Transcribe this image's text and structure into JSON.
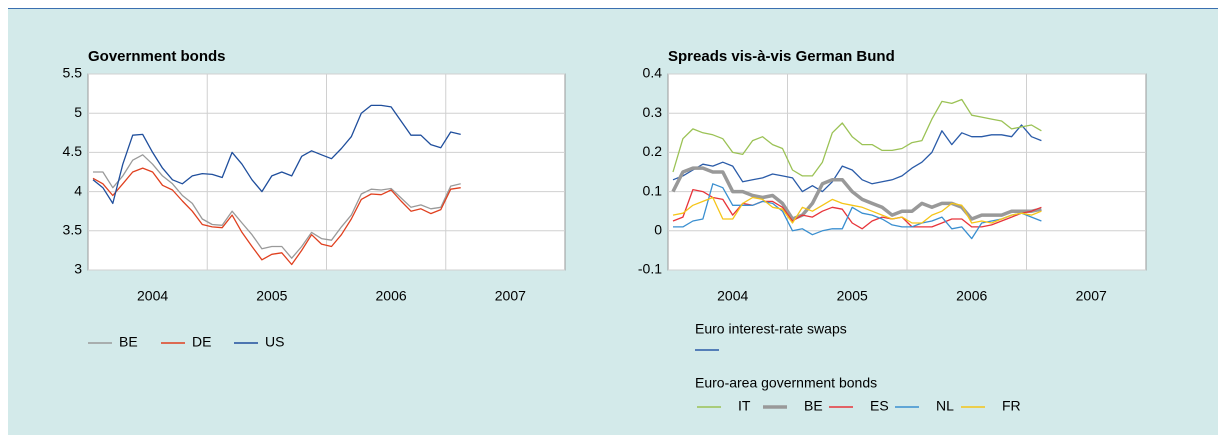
{
  "chart_data": [
    {
      "type": "line",
      "title": "Government bonds",
      "categories": [
        null,
        null,
        null,
        null,
        null,
        null,
        "2004",
        null,
        null,
        null,
        null,
        null,
        null,
        null,
        null,
        null,
        null,
        null,
        "2005",
        null,
        null,
        null,
        null,
        null,
        null,
        null,
        null,
        null,
        null,
        null,
        "2006",
        null,
        null,
        null,
        null,
        null,
        null,
        null,
        null,
        null,
        null,
        null,
        "2007",
        null,
        null,
        null,
        null,
        null
      ],
      "ylim": [
        3,
        5.5
      ],
      "yticks": [
        3,
        3.5,
        4,
        4.5,
        5,
        5.5
      ],
      "grid": true,
      "series": [
        {
          "name": "BE",
          "color": "#9a9a9a",
          "values": [
            4.25,
            4.25,
            4.05,
            4.2,
            4.4,
            4.47,
            4.35,
            4.2,
            4.1,
            3.95,
            3.85,
            3.65,
            3.58,
            3.57,
            3.75,
            3.6,
            3.45,
            3.27,
            3.3,
            3.3,
            3.15,
            3.3,
            3.48,
            3.4,
            3.38,
            3.55,
            3.7,
            3.97,
            4.03,
            4.02,
            4.04,
            3.92,
            3.8,
            3.83,
            3.78,
            3.8,
            4.07,
            4.1,
            null,
            null,
            null,
            null,
            null,
            null,
            null,
            null,
            null,
            null
          ]
        },
        {
          "name": "DE",
          "color": "#e0401f",
          "values": [
            4.17,
            4.1,
            3.95,
            4.1,
            4.25,
            4.3,
            4.25,
            4.08,
            4.02,
            3.88,
            3.75,
            3.58,
            3.55,
            3.54,
            3.7,
            3.48,
            3.3,
            3.13,
            3.2,
            3.22,
            3.07,
            3.25,
            3.45,
            3.33,
            3.3,
            3.45,
            3.65,
            3.9,
            3.97,
            3.96,
            4.02,
            3.88,
            3.75,
            3.78,
            3.72,
            3.77,
            4.03,
            4.05,
            null,
            null,
            null,
            null,
            null,
            null,
            null,
            null,
            null,
            null
          ]
        },
        {
          "name": "US",
          "color": "#1f4e9c",
          "values": [
            4.15,
            4.05,
            3.85,
            4.35,
            4.72,
            4.73,
            4.5,
            4.3,
            4.15,
            4.1,
            4.2,
            4.23,
            4.22,
            4.18,
            4.5,
            4.35,
            4.15,
            4.0,
            4.2,
            4.25,
            4.2,
            4.45,
            4.52,
            4.47,
            4.42,
            4.55,
            4.7,
            5.0,
            5.1,
            5.1,
            5.08,
            4.9,
            4.72,
            4.72,
            4.6,
            4.56,
            4.76,
            4.73,
            null,
            null,
            null,
            null,
            null,
            null,
            null,
            null,
            null,
            null
          ]
        }
      ]
    },
    {
      "type": "line",
      "title": "Spreads vis-à-vis German Bund",
      "categories": [
        null,
        null,
        null,
        null,
        null,
        null,
        "2004",
        null,
        null,
        null,
        null,
        null,
        null,
        null,
        null,
        null,
        null,
        null,
        "2005",
        null,
        null,
        null,
        null,
        null,
        null,
        null,
        null,
        null,
        null,
        null,
        "2006",
        null,
        null,
        null,
        null,
        null,
        null,
        null,
        null,
        null,
        null,
        null,
        "2007",
        null,
        null,
        null,
        null,
        null
      ],
      "ylim": [
        -0.1,
        0.4
      ],
      "yticks": [
        -0.1,
        0,
        0.1,
        0.2,
        0.3,
        0.4
      ],
      "grid": true,
      "legend_title": "Euro-area government bonds",
      "series": [
        {
          "name": "Euro interest-rate swaps",
          "color": "#2a5ba8",
          "values": [
            0.13,
            0.14,
            0.155,
            0.17,
            0.165,
            0.175,
            0.165,
            0.125,
            0.13,
            0.135,
            0.145,
            0.14,
            0.135,
            0.1,
            0.115,
            0.1,
            0.125,
            0.165,
            0.155,
            0.13,
            0.12,
            0.125,
            0.13,
            0.14,
            0.16,
            0.175,
            0.2,
            0.255,
            0.22,
            0.25,
            0.24,
            0.24,
            0.245,
            0.245,
            0.24,
            0.27,
            0.24,
            0.23,
            null,
            null,
            null,
            null,
            null,
            null,
            null,
            null,
            null,
            null
          ]
        },
        {
          "name": "IT",
          "color": "#9bc255",
          "values": [
            0.15,
            0.235,
            0.26,
            0.25,
            0.245,
            0.235,
            0.2,
            0.195,
            0.23,
            0.24,
            0.22,
            0.21,
            0.155,
            0.14,
            0.14,
            0.175,
            0.25,
            0.275,
            0.24,
            0.22,
            0.22,
            0.205,
            0.205,
            0.21,
            0.225,
            0.23,
            0.285,
            0.33,
            0.325,
            0.335,
            0.295,
            0.29,
            0.285,
            0.28,
            0.26,
            0.265,
            0.27,
            0.255,
            null,
            null,
            null,
            null,
            null,
            null,
            null,
            null,
            null,
            null
          ]
        },
        {
          "name": "BE",
          "color": "#999999",
          "width": 3.5,
          "values": [
            0.1,
            0.15,
            0.16,
            0.16,
            0.15,
            0.15,
            0.1,
            0.1,
            0.09,
            0.085,
            0.09,
            0.07,
            0.03,
            0.04,
            0.07,
            0.12,
            0.13,
            0.13,
            0.1,
            0.08,
            0.07,
            0.06,
            0.04,
            0.05,
            0.05,
            0.07,
            0.06,
            0.07,
            0.07,
            0.06,
            0.03,
            0.04,
            0.04,
            0.04,
            0.05,
            0.05,
            0.05,
            0.055,
            null,
            null,
            null,
            null,
            null,
            null,
            null,
            null,
            null,
            null
          ]
        },
        {
          "name": "ES",
          "color": "#e8343a",
          "values": [
            0.025,
            0.035,
            0.105,
            0.1,
            0.085,
            0.08,
            0.04,
            0.07,
            0.065,
            0.075,
            0.075,
            0.06,
            0.025,
            0.04,
            0.035,
            0.05,
            0.06,
            0.055,
            0.02,
            0.005,
            0.025,
            0.035,
            0.03,
            0.035,
            0.01,
            0.01,
            0.01,
            0.02,
            0.03,
            0.03,
            0.01,
            0.01,
            0.015,
            0.025,
            0.035,
            0.045,
            0.05,
            0.06,
            null,
            null,
            null,
            null,
            null,
            null,
            null,
            null,
            null,
            null
          ]
        },
        {
          "name": "NL",
          "color": "#3a8fd0",
          "values": [
            0.01,
            0.01,
            0.025,
            0.03,
            0.12,
            0.11,
            0.065,
            0.065,
            0.065,
            0.075,
            0.07,
            0.05,
            0.0,
            0.005,
            -0.01,
            0.0,
            0.005,
            0.005,
            0.06,
            0.045,
            0.04,
            0.03,
            0.015,
            0.01,
            0.01,
            0.02,
            0.025,
            0.035,
            0.005,
            0.01,
            -0.02,
            0.02,
            0.025,
            0.03,
            0.04,
            0.045,
            0.035,
            0.025,
            null,
            null,
            null,
            null,
            null,
            null,
            null,
            null,
            null,
            null
          ]
        },
        {
          "name": "FR",
          "color": "#f5c518",
          "values": [
            0.04,
            0.045,
            0.065,
            0.075,
            0.085,
            0.03,
            0.03,
            0.07,
            0.085,
            0.08,
            0.06,
            0.055,
            0.02,
            0.06,
            0.05,
            0.065,
            0.08,
            0.07,
            0.065,
            0.06,
            0.05,
            0.04,
            0.03,
            0.035,
            0.02,
            0.02,
            0.04,
            0.05,
            0.07,
            0.065,
            0.02,
            0.025,
            0.02,
            0.03,
            0.04,
            0.045,
            0.04,
            0.05,
            null,
            null,
            null,
            null,
            null,
            null,
            null,
            null,
            null,
            null
          ]
        }
      ]
    }
  ]
}
